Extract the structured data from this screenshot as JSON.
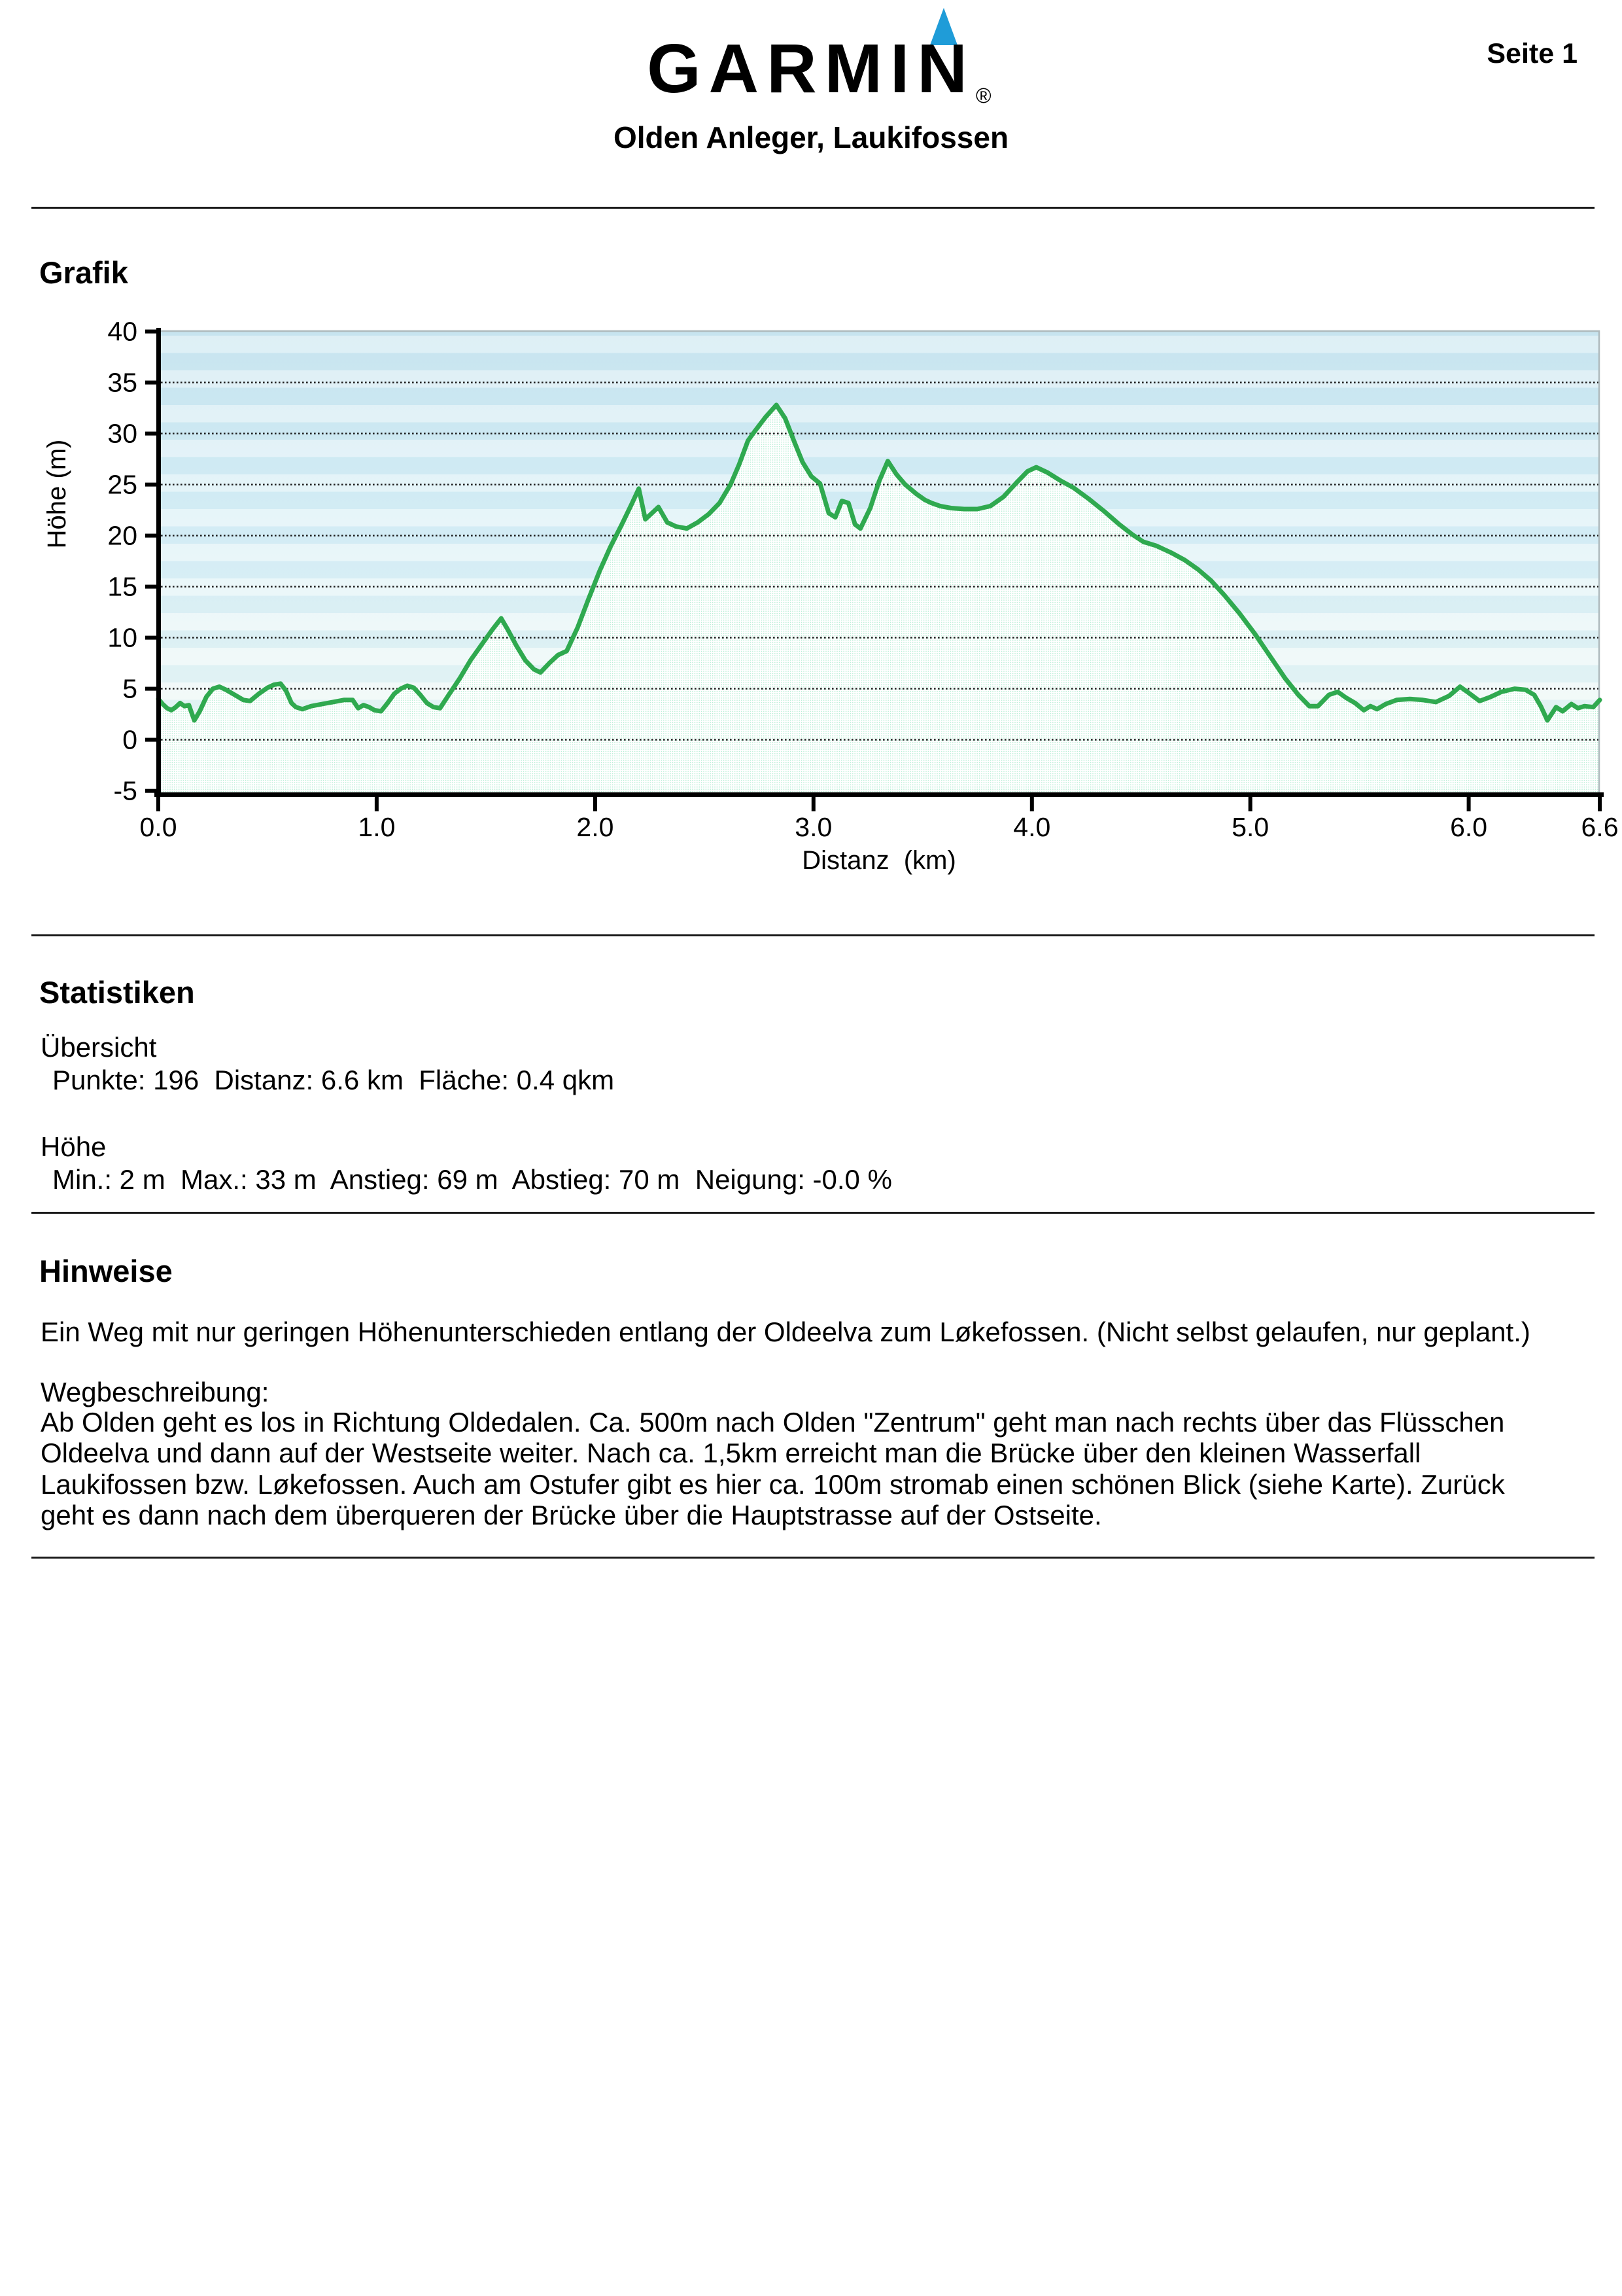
{
  "header": {
    "logo_text": "GARMIN",
    "registered": "®",
    "title": "Olden Anleger, Laukifossen",
    "page_label": "Seite 1",
    "accent_blue": "#1f9cd8"
  },
  "sections": {
    "grafik": {
      "heading": "Grafik"
    },
    "statistiken": {
      "heading": "Statistiken",
      "groups": [
        {
          "title": "Übersicht",
          "items": [
            {
              "label": "Punkte",
              "value": "196"
            },
            {
              "label": "Distanz",
              "value": "6.6 km"
            },
            {
              "label": "Fläche",
              "value": "0.4 qkm"
            }
          ]
        },
        {
          "title": "Höhe",
          "items": [
            {
              "label": "Min.",
              "value": "2 m"
            },
            {
              "label": "Max.",
              "value": "33 m"
            },
            {
              "label": "Anstieg",
              "value": "69 m"
            },
            {
              "label": "Abstieg",
              "value": "70 m"
            },
            {
              "label": "Neigung",
              "value": "-0.0 %"
            }
          ]
        }
      ]
    },
    "hinweise": {
      "heading": "Hinweise",
      "intro": "Ein Weg mit nur geringen Höhenunterschieden entlang der Oldeelva zum Løkefossen. (Nicht selbst gelaufen, nur geplant.)",
      "subtitle": "Wegbeschreibung:",
      "body_lines": [
        "Ab Olden geht es los in Richtung Oldedalen. Ca. 500m nach Olden \"Zentrum\" geht man nach rechts über das Flüsschen",
        "Oldeelva und dann auf der Westseite weiter. Nach ca. 1,5km erreicht man die Brücke über den kleinen Wasserfall",
        "Laukifossen bzw. Løkefossen. Auch am Ostufer gibt es hier ca. 100m stromab einen schönen Blick (siehe Karte). Zurück",
        "geht es dann nach dem überqueren der Brücke über die Hauptstrasse auf der Ostseite."
      ]
    }
  },
  "chart_data": {
    "type": "area",
    "xlabel": "Distanz  (km)",
    "ylabel": "Höhe (m)",
    "x_range": [
      0,
      6.6
    ],
    "y_axis_range": [
      -5,
      40
    ],
    "grid": true,
    "gridlines": [
      0,
      5,
      10,
      15,
      20,
      25,
      30,
      35
    ],
    "x_ticks": [
      {
        "v": 0,
        "label": "0.0"
      },
      {
        "v": 1,
        "label": "1.0"
      },
      {
        "v": 2,
        "label": "2.0"
      },
      {
        "v": 3,
        "label": "3.0"
      },
      {
        "v": 4,
        "label": "4.0"
      },
      {
        "v": 5,
        "label": "5.0"
      },
      {
        "v": 6,
        "label": "6.0"
      },
      {
        "v": 6.6,
        "label": "6.6"
      }
    ],
    "y_ticks": [
      {
        "v": -5,
        "label": "-5"
      },
      {
        "v": 0,
        "label": "0"
      },
      {
        "v": 5,
        "label": "5"
      },
      {
        "v": 10,
        "label": "10"
      },
      {
        "v": 15,
        "label": "15"
      },
      {
        "v": 20,
        "label": "20"
      },
      {
        "v": 25,
        "label": "25"
      },
      {
        "v": 30,
        "label": "30"
      },
      {
        "v": 35,
        "label": "35"
      },
      {
        "v": 40,
        "label": "40"
      }
    ],
    "line_color": "#2fa94f",
    "fill_dot_color": "#b2ecd2",
    "points": [
      [
        0.0,
        4.0
      ],
      [
        0.02,
        3.5
      ],
      [
        0.04,
        3.1
      ],
      [
        0.06,
        2.9
      ],
      [
        0.08,
        3.2
      ],
      [
        0.1,
        3.6
      ],
      [
        0.12,
        3.3
      ],
      [
        0.14,
        3.4
      ],
      [
        0.165,
        1.9
      ],
      [
        0.19,
        2.8
      ],
      [
        0.22,
        4.2
      ],
      [
        0.25,
        5.0
      ],
      [
        0.28,
        5.2
      ],
      [
        0.31,
        4.9
      ],
      [
        0.35,
        4.4
      ],
      [
        0.39,
        3.9
      ],
      [
        0.42,
        3.8
      ],
      [
        0.46,
        4.5
      ],
      [
        0.5,
        5.1
      ],
      [
        0.53,
        5.4
      ],
      [
        0.56,
        5.5
      ],
      [
        0.585,
        4.8
      ],
      [
        0.61,
        3.6
      ],
      [
        0.63,
        3.2
      ],
      [
        0.66,
        3.0
      ],
      [
        0.7,
        3.3
      ],
      [
        0.75,
        3.5
      ],
      [
        0.8,
        3.7
      ],
      [
        0.85,
        3.9
      ],
      [
        0.89,
        3.9
      ],
      [
        0.915,
        3.1
      ],
      [
        0.94,
        3.4
      ],
      [
        0.965,
        3.2
      ],
      [
        0.99,
        2.9
      ],
      [
        1.02,
        2.8
      ],
      [
        1.05,
        3.6
      ],
      [
        1.08,
        4.5
      ],
      [
        1.11,
        5.0
      ],
      [
        1.14,
        5.3
      ],
      [
        1.17,
        5.1
      ],
      [
        1.2,
        4.4
      ],
      [
        1.23,
        3.6
      ],
      [
        1.26,
        3.2
      ],
      [
        1.29,
        3.1
      ],
      [
        1.33,
        4.4
      ],
      [
        1.38,
        6.0
      ],
      [
        1.43,
        7.8
      ],
      [
        1.48,
        9.3
      ],
      [
        1.53,
        10.8
      ],
      [
        1.57,
        11.9
      ],
      [
        1.6,
        10.8
      ],
      [
        1.64,
        9.2
      ],
      [
        1.68,
        7.8
      ],
      [
        1.72,
        6.9
      ],
      [
        1.75,
        6.6
      ],
      [
        1.79,
        7.5
      ],
      [
        1.83,
        8.3
      ],
      [
        1.87,
        8.7
      ],
      [
        1.92,
        11.0
      ],
      [
        1.97,
        13.8
      ],
      [
        2.02,
        16.5
      ],
      [
        2.07,
        18.9
      ],
      [
        2.12,
        21.0
      ],
      [
        2.17,
        23.2
      ],
      [
        2.2,
        24.6
      ],
      [
        2.23,
        21.6
      ],
      [
        2.26,
        22.2
      ],
      [
        2.29,
        22.8
      ],
      [
        2.33,
        21.3
      ],
      [
        2.37,
        20.9
      ],
      [
        2.42,
        20.7
      ],
      [
        2.47,
        21.3
      ],
      [
        2.52,
        22.1
      ],
      [
        2.57,
        23.2
      ],
      [
        2.62,
        25.0
      ],
      [
        2.66,
        27.0
      ],
      [
        2.7,
        29.3
      ],
      [
        2.73,
        30.2
      ],
      [
        2.78,
        31.6
      ],
      [
        2.83,
        32.8
      ],
      [
        2.87,
        31.5
      ],
      [
        2.91,
        29.3
      ],
      [
        2.95,
        27.2
      ],
      [
        2.99,
        25.8
      ],
      [
        3.03,
        25.1
      ],
      [
        3.07,
        22.2
      ],
      [
        3.1,
        21.8
      ],
      [
        3.13,
        23.4
      ],
      [
        3.16,
        23.2
      ],
      [
        3.19,
        21.1
      ],
      [
        3.215,
        20.7
      ],
      [
        3.26,
        22.7
      ],
      [
        3.3,
        25.3
      ],
      [
        3.34,
        27.3
      ],
      [
        3.38,
        26.0
      ],
      [
        3.42,
        25.0
      ],
      [
        3.47,
        24.1
      ],
      [
        3.51,
        23.5
      ],
      [
        3.54,
        23.2
      ],
      [
        3.58,
        22.9
      ],
      [
        3.63,
        22.7
      ],
      [
        3.69,
        22.6
      ],
      [
        3.75,
        22.6
      ],
      [
        3.81,
        22.9
      ],
      [
        3.87,
        23.8
      ],
      [
        3.93,
        25.2
      ],
      [
        3.98,
        26.3
      ],
      [
        4.02,
        26.7
      ],
      [
        4.07,
        26.2
      ],
      [
        4.13,
        25.4
      ],
      [
        4.19,
        24.7
      ],
      [
        4.26,
        23.6
      ],
      [
        4.33,
        22.4
      ],
      [
        4.4,
        21.1
      ],
      [
        4.46,
        20.1
      ],
      [
        4.51,
        19.4
      ],
      [
        4.57,
        19.0
      ],
      [
        4.64,
        18.3
      ],
      [
        4.7,
        17.6
      ],
      [
        4.76,
        16.7
      ],
      [
        4.82,
        15.6
      ],
      [
        4.88,
        14.2
      ],
      [
        4.95,
        12.4
      ],
      [
        5.02,
        10.4
      ],
      [
        5.09,
        8.2
      ],
      [
        5.16,
        6.0
      ],
      [
        5.22,
        4.4
      ],
      [
        5.27,
        3.3
      ],
      [
        5.31,
        3.3
      ],
      [
        5.36,
        4.4
      ],
      [
        5.4,
        4.7
      ],
      [
        5.44,
        4.1
      ],
      [
        5.48,
        3.6
      ],
      [
        5.52,
        2.9
      ],
      [
        5.55,
        3.3
      ],
      [
        5.58,
        3.0
      ],
      [
        5.62,
        3.5
      ],
      [
        5.67,
        3.9
      ],
      [
        5.73,
        4.0
      ],
      [
        5.79,
        3.9
      ],
      [
        5.85,
        3.7
      ],
      [
        5.91,
        4.3
      ],
      [
        5.96,
        5.2
      ],
      [
        6.0,
        4.6
      ],
      [
        6.05,
        3.8
      ],
      [
        6.1,
        4.2
      ],
      [
        6.15,
        4.7
      ],
      [
        6.21,
        5.0
      ],
      [
        6.26,
        4.9
      ],
      [
        6.3,
        4.4
      ],
      [
        6.33,
        3.3
      ],
      [
        6.36,
        1.9
      ],
      [
        6.4,
        3.2
      ],
      [
        6.43,
        2.8
      ],
      [
        6.47,
        3.5
      ],
      [
        6.5,
        3.1
      ],
      [
        6.53,
        3.3
      ],
      [
        6.57,
        3.2
      ],
      [
        6.6,
        3.9
      ]
    ]
  }
}
